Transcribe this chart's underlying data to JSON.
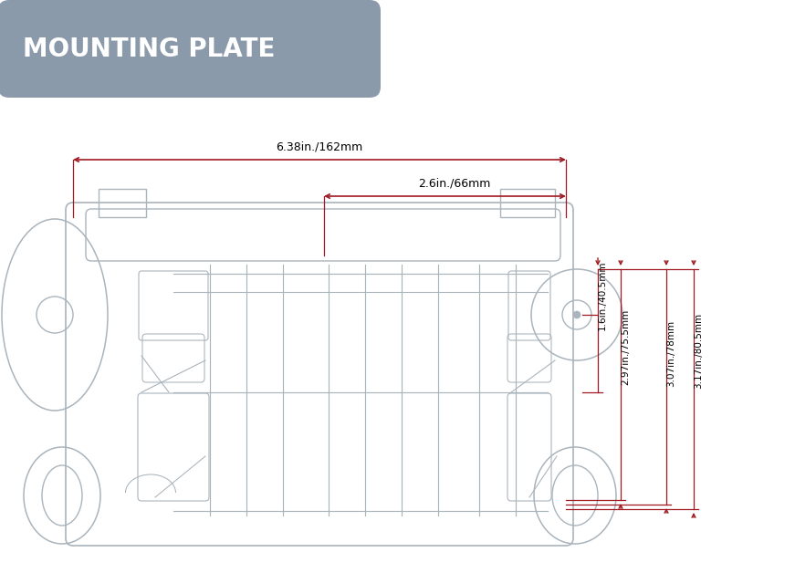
{
  "title": "MOUNTING PLATE",
  "title_bg_color": "#8a9aaa",
  "title_text_color": "#ffffff",
  "line_color": "#aab4bc",
  "dim_color": "#a01820",
  "bg_color": "#ffffff",
  "dim_top_total": "6.38in./162mm",
  "dim_top_inner": "2.6in./66mm",
  "dim_right_1": "1.6in./40.5mm",
  "dim_right_2": "2.97in./75.5mm",
  "dim_right_3": "3.07in./78mm",
  "dim_right_4": "3.17in./80.5mm",
  "figsize": [
    8.71,
    6.28
  ],
  "dpi": 100,
  "xlim": [
    0,
    8.71
  ],
  "ylim": [
    0,
    6.28
  ]
}
